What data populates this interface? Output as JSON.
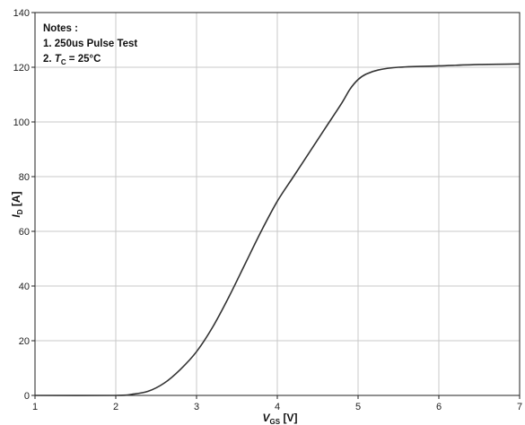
{
  "chart_data": {
    "type": "line",
    "xlabel": {
      "main": "V",
      "sub": "GS",
      "unit": " [V]"
    },
    "ylabel": {
      "main": "I",
      "sub": "D",
      "unit": " [A]"
    },
    "xlim": [
      1,
      7
    ],
    "ylim": [
      0,
      140
    ],
    "xticks": [
      1,
      2,
      3,
      4,
      5,
      6,
      7
    ],
    "yticks": [
      0,
      20,
      40,
      60,
      80,
      100,
      120,
      140
    ],
    "grid": true,
    "notes": {
      "title": "Notes :",
      "line1": "1. 250us Pulse Test",
      "line2_prefix": "2. ",
      "line2_var": "T",
      "line2_sub": "C",
      "line2_suffix": " = 25°C"
    },
    "series": [
      {
        "color": "#333333",
        "x": [
          1.0,
          2.0,
          2.2,
          2.4,
          2.6,
          2.8,
          3.0,
          3.2,
          3.4,
          3.6,
          3.8,
          4.0,
          4.2,
          4.4,
          4.6,
          4.8,
          4.9,
          5.0,
          5.1,
          5.25,
          5.5,
          6.0,
          6.5,
          7.0
        ],
        "y": [
          0,
          0,
          0.4,
          1.5,
          4.5,
          9.5,
          16,
          25,
          36,
          48,
          60,
          71,
          80,
          89,
          98,
          107,
          112,
          115.5,
          117.5,
          119,
          120,
          120.5,
          121,
          121.2
        ]
      }
    ]
  }
}
